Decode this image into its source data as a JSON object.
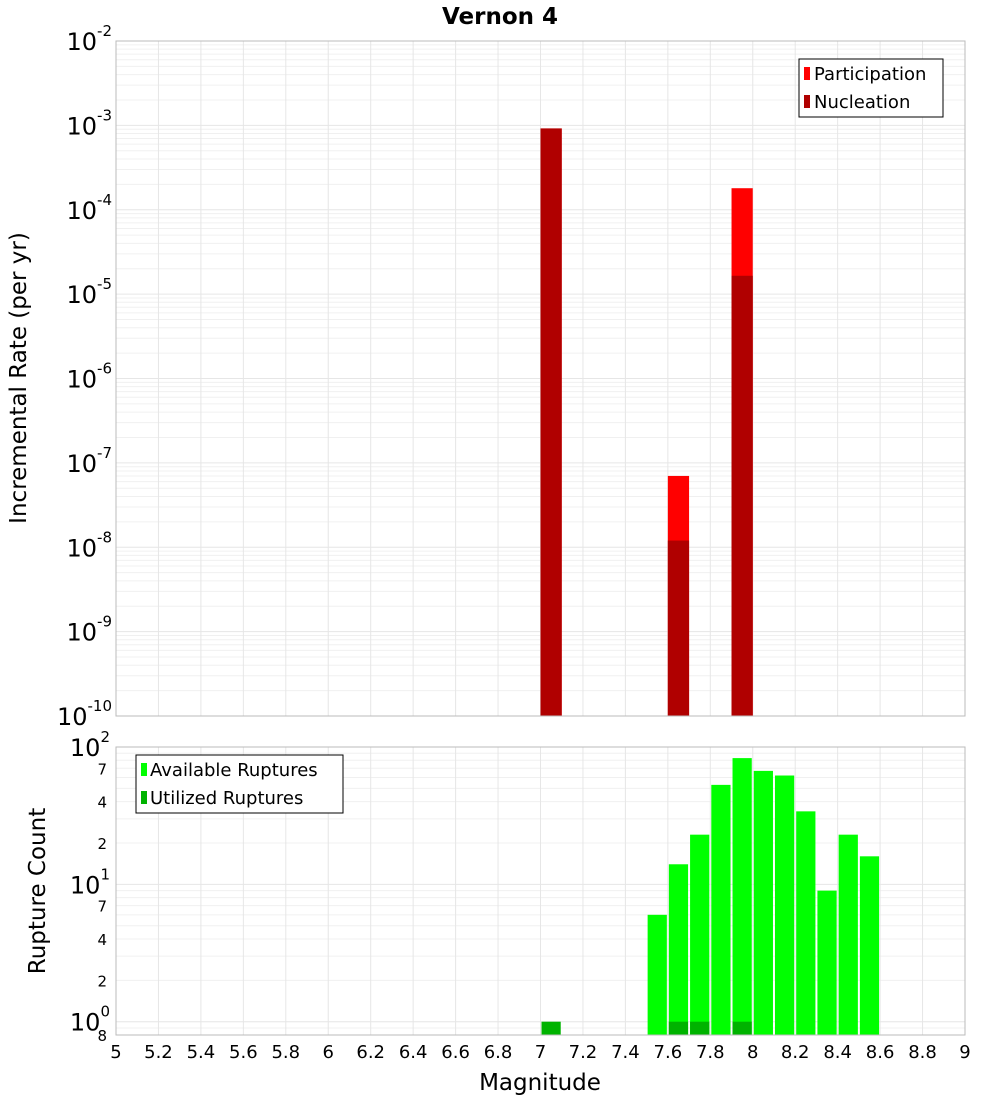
{
  "chart_data": [
    {
      "type": "bar",
      "title": "Vernon 4",
      "xlabel": "",
      "ylabel": "Incremental Rate (per yr)",
      "xlim": [
        5,
        9
      ],
      "ylim": [
        1e-10,
        0.01
      ],
      "yscale": "log",
      "bar_width": 0.1,
      "grid": true,
      "legend_position": "top-right",
      "series": [
        {
          "name": "Participation",
          "color": "#ff0000",
          "x": [
            7.05,
            7.65,
            7.95
          ],
          "values": [
            0.00092,
            7e-08,
            0.00018
          ]
        },
        {
          "name": "Nucleation",
          "color": "#b00000",
          "x": [
            7.05,
            7.65,
            7.95
          ],
          "values": [
            0.00092,
            1.2e-08,
            1.65e-05
          ]
        }
      ],
      "y_ticks": [
        {
          "base": "10",
          "exp": "-2",
          "value": 0.01
        },
        {
          "base": "10",
          "exp": "-3",
          "value": 0.001
        },
        {
          "base": "10",
          "exp": "-4",
          "value": 0.0001
        },
        {
          "base": "10",
          "exp": "-5",
          "value": 1e-05
        },
        {
          "base": "10",
          "exp": "-6",
          "value": 1e-06
        },
        {
          "base": "10",
          "exp": "-7",
          "value": 1e-07
        },
        {
          "base": "10",
          "exp": "-8",
          "value": 1e-08
        },
        {
          "base": "10",
          "exp": "-9",
          "value": 1e-09
        },
        {
          "base": "10",
          "exp": "-10",
          "value": 1e-10
        }
      ]
    },
    {
      "type": "bar",
      "xlabel": "Magnitude",
      "ylabel": "Rupture Count",
      "xlim": [
        5,
        9
      ],
      "ylim": [
        0.8,
        100
      ],
      "yscale": "log",
      "bar_width": 0.1,
      "grid": true,
      "legend_position": "top-left",
      "series": [
        {
          "name": "Available Ruptures",
          "color": "#00ff00",
          "x": [
            7.55,
            7.65,
            7.75,
            7.85,
            7.95,
            8.05,
            8.15,
            8.25,
            8.35,
            8.45,
            8.55
          ],
          "values": [
            6,
            14,
            23,
            53,
            83,
            67,
            62,
            34,
            9,
            23,
            16
          ]
        },
        {
          "name": "Utilized Ruptures",
          "color": "#00b300",
          "x": [
            7.05,
            7.65,
            7.75,
            7.95
          ],
          "values": [
            1,
            1,
            1,
            1
          ]
        }
      ],
      "x_ticks": [
        "5",
        "5.2",
        "5.4",
        "5.6",
        "5.8",
        "6",
        "6.2",
        "6.4",
        "6.6",
        "6.8",
        "7",
        "7.2",
        "7.4",
        "7.6",
        "7.8",
        "8",
        "8.2",
        "8.4",
        "8.6",
        "8.8",
        "9"
      ],
      "y_major_ticks": [
        {
          "base": "10",
          "exp": "2",
          "value": 100
        },
        {
          "base": "10",
          "exp": "1",
          "value": 10
        },
        {
          "base": "10",
          "exp": "0",
          "value": 1
        }
      ],
      "y_minor_ticks": [
        {
          "label": "7",
          "value": 70
        },
        {
          "label": "4",
          "value": 40
        },
        {
          "label": "2",
          "value": 20
        },
        {
          "label": "7",
          "value": 7
        },
        {
          "label": "4",
          "value": 4
        },
        {
          "label": "2",
          "value": 2
        },
        {
          "label": "8",
          "value": 0.8
        }
      ]
    }
  ]
}
